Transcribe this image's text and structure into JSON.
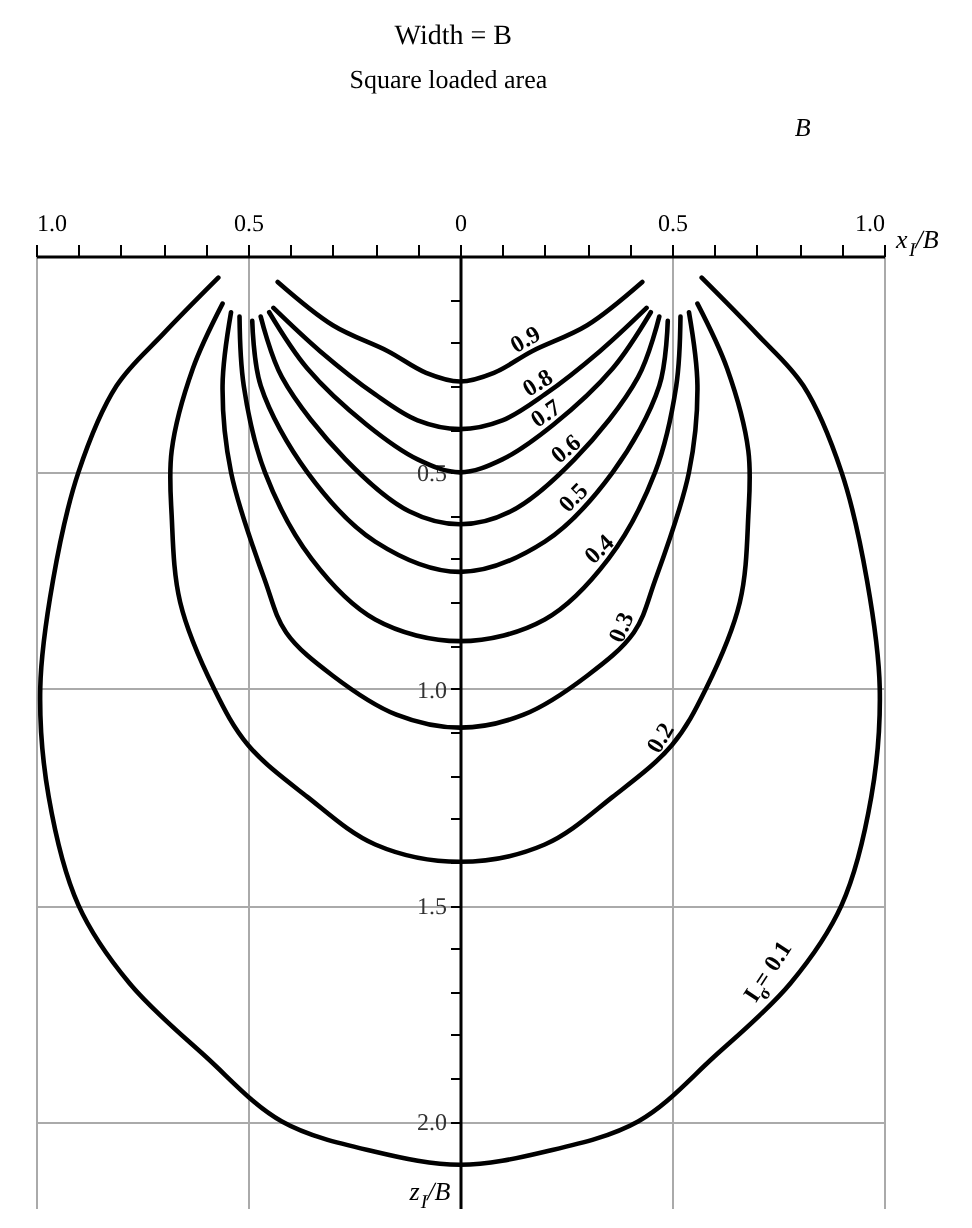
{
  "chart_data": {
    "type": "line",
    "xlabel": "x$_{I}$/B",
    "ylabel": "z$_{I}$/B",
    "xlim": [
      -1.0,
      1.0
    ],
    "ylim": [
      2.2,
      0
    ],
    "xticks": [
      {
        "value": -1.0,
        "label": "1.0"
      },
      {
        "value": -0.9,
        "label": null
      },
      {
        "value": -0.8,
        "label": null
      },
      {
        "value": -0.7,
        "label": null
      },
      {
        "value": -0.6,
        "label": null
      },
      {
        "value": -0.5,
        "label": "0.5"
      },
      {
        "value": -0.4,
        "label": null
      },
      {
        "value": -0.3,
        "label": null
      },
      {
        "value": -0.2,
        "label": null
      },
      {
        "value": -0.1,
        "label": null
      },
      0,
      {
        "value": 0.1,
        "label": null
      },
      {
        "value": 0.2,
        "label": null
      },
      {
        "value": 0.3,
        "label": null
      },
      {
        "value": 0.4,
        "label": null
      },
      0.5,
      {
        "value": 0.6,
        "label": null
      },
      {
        "value": 0.7,
        "label": null
      },
      {
        "value": 0.8,
        "label": null
      },
      {
        "value": 0.9,
        "label": null
      },
      {
        "value": 1.0,
        "label": "1.0"
      }
    ],
    "yticks": [
      {
        "value": 0.1,
        "label": null
      },
      {
        "value": 0.2,
        "label": null
      },
      {
        "value": 0.3,
        "label": null
      },
      {
        "value": 0.4,
        "label": null
      },
      0.5,
      {
        "value": 0.6,
        "label": null
      },
      {
        "value": 0.7,
        "label": null
      },
      {
        "value": 0.8,
        "label": null
      },
      {
        "value": 0.9,
        "label": null
      },
      {
        "value": 1.0,
        "label": "1.0"
      },
      {
        "value": 1.1,
        "label": null
      },
      {
        "value": 1.2,
        "label": null
      },
      {
        "value": 1.3,
        "label": null
      },
      {
        "value": 1.4,
        "label": null
      },
      1.5,
      {
        "value": 1.6,
        "label": null
      },
      {
        "value": 1.7,
        "label": null
      },
      {
        "value": 1.8,
        "label": null
      },
      {
        "value": 1.9,
        "label": null
      },
      {
        "value": 2.0,
        "label": "2.0"
      },
      {
        "value": 2.1,
        "label": null
      }
    ],
    "grid": true,
    "legend": false,
    "marker": "none",
    "line_style": "solid",
    "series": [
      {
        "color": "#000000",
        "x": [
          -0.43,
          -0.3,
          -0.17,
          -0.08,
          0,
          0.08,
          0.17,
          0.3,
          0.43
        ],
        "values": [
          0.06,
          0.16,
          0.22,
          0.27,
          0.29,
          0.27,
          0.22,
          0.16,
          0.06
        ]
      },
      {
        "color": "#000000",
        "x": [
          -0.44,
          -0.33,
          -0.2,
          -0.1,
          0,
          0.1,
          0.2,
          0.33,
          0.44
        ],
        "values": [
          0.12,
          0.22,
          0.32,
          0.38,
          0.4,
          0.38,
          0.32,
          0.22,
          0.12
        ]
      },
      {
        "color": "#000000",
        "x": [
          -0.45,
          -0.36,
          -0.22,
          -0.1,
          0,
          0.1,
          0.22,
          0.36,
          0.45
        ],
        "values": [
          0.13,
          0.26,
          0.39,
          0.47,
          0.5,
          0.47,
          0.39,
          0.26,
          0.13
        ]
      },
      {
        "color": "#000000",
        "x": [
          -0.47,
          -0.42,
          -0.27,
          -0.12,
          0,
          0.12,
          0.27,
          0.42,
          0.47
        ],
        "values": [
          0.14,
          0.28,
          0.47,
          0.59,
          0.62,
          0.59,
          0.47,
          0.28,
          0.14
        ]
      },
      {
        "color": "#000000",
        "x": [
          -0.49,
          -0.47,
          -0.36,
          -0.2,
          0,
          0.2,
          0.36,
          0.47,
          0.49
        ],
        "values": [
          0.15,
          0.3,
          0.5,
          0.66,
          0.73,
          0.66,
          0.5,
          0.3,
          0.15
        ]
      },
      {
        "color": "#000000",
        "x": [
          -0.52,
          -0.51,
          -0.46,
          -0.35,
          -0.2,
          0,
          0.2,
          0.35,
          0.46,
          0.51,
          0.52
        ],
        "values": [
          0.14,
          0.3,
          0.5,
          0.7,
          0.84,
          0.89,
          0.84,
          0.7,
          0.5,
          0.3,
          0.14
        ]
      },
      {
        "color": "#000000",
        "x": [
          -0.54,
          -0.56,
          -0.54,
          -0.46,
          -0.41,
          -0.3,
          -0.15,
          0,
          0.15,
          0.3,
          0.41,
          0.46,
          0.54,
          0.56,
          0.54
        ],
        "values": [
          0.13,
          0.3,
          0.5,
          0.75,
          0.87,
          0.97,
          1.06,
          1.09,
          1.06,
          0.97,
          0.87,
          0.75,
          0.5,
          0.3,
          0.13
        ]
      },
      {
        "color": "#000000",
        "x": [
          -0.56,
          -0.63,
          -0.68,
          -0.68,
          -0.66,
          -0.58,
          -0.5,
          -0.36,
          -0.2,
          0,
          0.2,
          0.36,
          0.5,
          0.58,
          0.66,
          0.68,
          0.68,
          0.63,
          0.56
        ],
        "values": [
          0.11,
          0.26,
          0.45,
          0.6,
          0.8,
          1.0,
          1.13,
          1.25,
          1.36,
          1.4,
          1.36,
          1.25,
          1.13,
          1.0,
          0.8,
          0.6,
          0.45,
          0.26,
          0.11
        ]
      },
      {
        "color": "#000000",
        "x": [
          -0.57,
          -0.7,
          -0.81,
          -0.9,
          -0.96,
          -0.99,
          -0.97,
          -0.9,
          -0.78,
          -0.6,
          -0.42,
          -0.2,
          0,
          0.2,
          0.42,
          0.6,
          0.78,
          0.9,
          0.97,
          0.99,
          0.96,
          0.9,
          0.81,
          0.7,
          0.57
        ],
        "values": [
          0.05,
          0.18,
          0.3,
          0.5,
          0.75,
          1.0,
          1.25,
          1.5,
          1.68,
          1.85,
          2.0,
          2.07,
          2.1,
          2.07,
          2.0,
          1.85,
          1.68,
          1.5,
          1.25,
          1.0,
          0.75,
          0.5,
          0.3,
          0.18,
          0.05
        ]
      }
    ],
    "annotations": [
      "Width = B",
      "Square loaded area",
      "B",
      {
        "text": "0.9",
        "x": 0.17,
        "y": 0.22
      },
      {
        "text": "0.8",
        "x": 0.2,
        "y": 0.32
      },
      {
        "text": "0.7",
        "x": 0.22,
        "y": 0.39
      },
      {
        "text": "0.6",
        "x": 0.27,
        "y": 0.47
      },
      {
        "text": "0.5",
        "x": 0.29,
        "y": 0.58
      },
      {
        "text": "0.4",
        "x": 0.35,
        "y": 0.7
      },
      {
        "text": "0.3",
        "x": 0.41,
        "y": 0.87
      },
      {
        "text": "0.2",
        "x": 0.5,
        "y": 1.13
      },
      {
        "text": "I$_{σ}$ = 0.1",
        "x": 0.78,
        "y": 1.68
      }
    ]
  }
}
